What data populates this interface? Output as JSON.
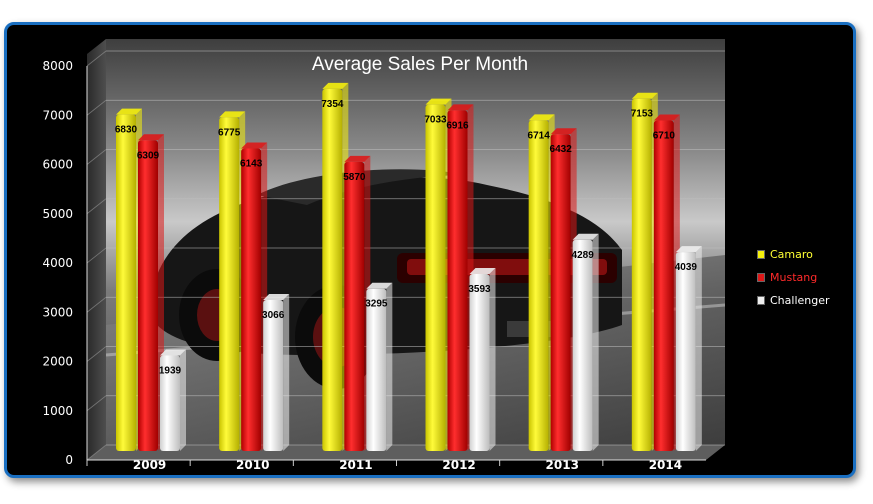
{
  "chart_data": {
    "type": "bar",
    "title": "Average Sales Per Month",
    "categories": [
      "2009",
      "2010",
      "2011",
      "2012",
      "2013",
      "2014"
    ],
    "series": [
      {
        "name": "Camaro",
        "color": "#f5f00c",
        "label_color": "#ffff33",
        "values": [
          6830,
          6775,
          7354,
          7033,
          6714,
          7153
        ]
      },
      {
        "name": "Mustang",
        "color": "#dd1818",
        "label_color": "#ff2a2a",
        "values": [
          6309,
          6143,
          5870,
          6916,
          6432,
          6710
        ]
      },
      {
        "name": "Challenger",
        "color": "#eeeeee",
        "label_color": "#ffffff",
        "values": [
          1939,
          3066,
          3295,
          3593,
          4289,
          4039
        ]
      }
    ],
    "value_labels": {
      "Camaro": [
        "6830",
        "6775",
        "7354",
        "7033",
        "6714",
        "7153"
      ],
      "Mustang": [
        "6309",
        "6143",
        "5870",
        "6916",
        "6432",
        "6710"
      ],
      "Challenger": [
        "1939",
        "3066",
        "3295",
        "3593",
        "4289",
        "4039"
      ]
    },
    "y_ticks": [
      "0",
      "1000",
      "2000",
      "3000",
      "4000",
      "5000",
      "6000",
      "7000",
      "8000"
    ],
    "ylim": [
      0,
      8000
    ],
    "grid": true,
    "legend_position": "right",
    "background": "photo of black muscle car (decorative)"
  }
}
